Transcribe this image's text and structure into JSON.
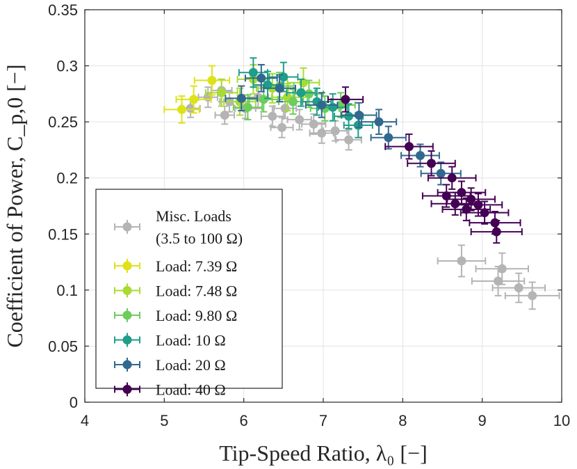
{
  "chart_data": {
    "type": "scatter",
    "title": "",
    "xlabel": "Tip-Speed Ratio, λ₀ [−]",
    "ylabel": "Coefficient of Power, C_p,0 [−]",
    "xlim": [
      4,
      10
    ],
    "ylim": [
      0,
      0.35
    ],
    "x_ticks": [
      "4",
      "5",
      "6",
      "7",
      "8",
      "9",
      "10"
    ],
    "y_ticks": [
      "0",
      "0.05",
      "0.1",
      "0.15",
      "0.2",
      "0.25",
      "0.3",
      "0.35"
    ],
    "grid": true,
    "legend_position": "bottom-left",
    "error_bars": true,
    "series": [
      {
        "name": "Misc. Loads (3.5 to 100 Ω)",
        "legend_lines": [
          "Misc. Loads",
          "(3.5 to 100 Ω)"
        ],
        "color": "#b4b4b4",
        "points": [
          {
            "x": 5.33,
            "y": 0.262,
            "xerr": 0.12,
            "yerr": 0.008
          },
          {
            "x": 5.55,
            "y": 0.272,
            "xerr": 0.12,
            "yerr": 0.009
          },
          {
            "x": 5.72,
            "y": 0.278,
            "xerr": 0.13,
            "yerr": 0.01
          },
          {
            "x": 5.82,
            "y": 0.268,
            "xerr": 0.12,
            "yerr": 0.009
          },
          {
            "x": 5.76,
            "y": 0.256,
            "xerr": 0.12,
            "yerr": 0.008
          },
          {
            "x": 6.02,
            "y": 0.262,
            "xerr": 0.13,
            "yerr": 0.009
          },
          {
            "x": 6.18,
            "y": 0.272,
            "xerr": 0.13,
            "yerr": 0.01
          },
          {
            "x": 6.36,
            "y": 0.255,
            "xerr": 0.14,
            "yerr": 0.009
          },
          {
            "x": 6.52,
            "y": 0.262,
            "xerr": 0.14,
            "yerr": 0.009
          },
          {
            "x": 6.48,
            "y": 0.245,
            "xerr": 0.14,
            "yerr": 0.009
          },
          {
            "x": 6.7,
            "y": 0.252,
            "xerr": 0.15,
            "yerr": 0.009
          },
          {
            "x": 6.88,
            "y": 0.248,
            "xerr": 0.15,
            "yerr": 0.009
          },
          {
            "x": 6.98,
            "y": 0.24,
            "xerr": 0.15,
            "yerr": 0.009
          },
          {
            "x": 7.15,
            "y": 0.242,
            "xerr": 0.15,
            "yerr": 0.009
          },
          {
            "x": 7.32,
            "y": 0.234,
            "xerr": 0.16,
            "yerr": 0.009
          },
          {
            "x": 8.74,
            "y": 0.126,
            "xerr": 0.3,
            "yerr": 0.014
          },
          {
            "x": 9.25,
            "y": 0.119,
            "xerr": 0.33,
            "yerr": 0.014
          },
          {
            "x": 9.2,
            "y": 0.108,
            "xerr": 0.33,
            "yerr": 0.013
          },
          {
            "x": 9.46,
            "y": 0.102,
            "xerr": 0.33,
            "yerr": 0.013
          },
          {
            "x": 9.63,
            "y": 0.095,
            "xerr": 0.34,
            "yerr": 0.012
          }
        ]
      },
      {
        "name": "Load: 7.39 Ω",
        "color": "#dde318",
        "points": [
          {
            "x": 5.22,
            "y": 0.261,
            "xerr": 0.22,
            "yerr": 0.012
          },
          {
            "x": 5.37,
            "y": 0.27,
            "xerr": 0.22,
            "yerr": 0.012
          },
          {
            "x": 5.6,
            "y": 0.287,
            "xerr": 0.22,
            "yerr": 0.013
          }
        ]
      },
      {
        "name": "Load: 7.48 Ω",
        "color": "#a8db34",
        "points": [
          {
            "x": 5.72,
            "y": 0.276,
            "xerr": 0.2,
            "yerr": 0.012
          },
          {
            "x": 5.95,
            "y": 0.268,
            "xerr": 0.2,
            "yerr": 0.012
          },
          {
            "x": 6.12,
            "y": 0.288,
            "xerr": 0.2,
            "yerr": 0.013
          },
          {
            "x": 6.36,
            "y": 0.28,
            "xerr": 0.2,
            "yerr": 0.013
          },
          {
            "x": 6.55,
            "y": 0.272,
            "xerr": 0.2,
            "yerr": 0.012
          },
          {
            "x": 6.75,
            "y": 0.285,
            "xerr": 0.2,
            "yerr": 0.013
          }
        ]
      },
      {
        "name": "Load: 9.80 Ω",
        "color": "#6ccd5a",
        "points": [
          {
            "x": 6.05,
            "y": 0.263,
            "xerr": 0.18,
            "yerr": 0.011
          },
          {
            "x": 6.25,
            "y": 0.27,
            "xerr": 0.18,
            "yerr": 0.011
          },
          {
            "x": 6.45,
            "y": 0.282,
            "xerr": 0.18,
            "yerr": 0.012
          },
          {
            "x": 6.62,
            "y": 0.268,
            "xerr": 0.18,
            "yerr": 0.011
          },
          {
            "x": 6.82,
            "y": 0.275,
            "xerr": 0.18,
            "yerr": 0.012
          },
          {
            "x": 7.02,
            "y": 0.262,
            "xerr": 0.18,
            "yerr": 0.011
          },
          {
            "x": 7.22,
            "y": 0.265,
            "xerr": 0.18,
            "yerr": 0.011
          }
        ]
      },
      {
        "name": "Load: 10 Ω",
        "color": "#1f9e89",
        "points": [
          {
            "x": 6.12,
            "y": 0.294,
            "xerr": 0.18,
            "yerr": 0.013
          },
          {
            "x": 6.3,
            "y": 0.283,
            "xerr": 0.18,
            "yerr": 0.012
          },
          {
            "x": 6.5,
            "y": 0.29,
            "xerr": 0.18,
            "yerr": 0.013
          },
          {
            "x": 6.72,
            "y": 0.276,
            "xerr": 0.18,
            "yerr": 0.012
          },
          {
            "x": 6.92,
            "y": 0.268,
            "xerr": 0.18,
            "yerr": 0.012
          },
          {
            "x": 7.12,
            "y": 0.263,
            "xerr": 0.18,
            "yerr": 0.012
          },
          {
            "x": 7.32,
            "y": 0.255,
            "xerr": 0.18,
            "yerr": 0.011
          },
          {
            "x": 7.44,
            "y": 0.247,
            "xerr": 0.18,
            "yerr": 0.011
          }
        ]
      },
      {
        "name": "Load: 20 Ω",
        "color": "#31688e",
        "points": [
          {
            "x": 5.97,
            "y": 0.271,
            "xerr": 0.2,
            "yerr": 0.011
          },
          {
            "x": 6.22,
            "y": 0.289,
            "xerr": 0.2,
            "yerr": 0.012
          },
          {
            "x": 6.45,
            "y": 0.28,
            "xerr": 0.2,
            "yerr": 0.012
          },
          {
            "x": 6.98,
            "y": 0.265,
            "xerr": 0.2,
            "yerr": 0.011
          },
          {
            "x": 7.45,
            "y": 0.256,
            "xerr": 0.22,
            "yerr": 0.011
          },
          {
            "x": 7.7,
            "y": 0.25,
            "xerr": 0.22,
            "yerr": 0.011
          },
          {
            "x": 7.82,
            "y": 0.236,
            "xerr": 0.22,
            "yerr": 0.01
          },
          {
            "x": 8.22,
            "y": 0.22,
            "xerr": 0.24,
            "yerr": 0.01
          },
          {
            "x": 8.48,
            "y": 0.204,
            "xerr": 0.25,
            "yerr": 0.01
          }
        ]
      },
      {
        "name": "Load: 40 Ω",
        "color": "#440154",
        "points": [
          {
            "x": 7.28,
            "y": 0.27,
            "xerr": 0.22,
            "yerr": 0.011
          },
          {
            "x": 8.08,
            "y": 0.228,
            "xerr": 0.3,
            "yerr": 0.011
          },
          {
            "x": 8.36,
            "y": 0.213,
            "xerr": 0.3,
            "yerr": 0.011
          },
          {
            "x": 8.62,
            "y": 0.2,
            "xerr": 0.3,
            "yerr": 0.01
          },
          {
            "x": 8.55,
            "y": 0.184,
            "xerr": 0.3,
            "yerr": 0.01
          },
          {
            "x": 8.66,
            "y": 0.177,
            "xerr": 0.3,
            "yerr": 0.01
          },
          {
            "x": 8.74,
            "y": 0.187,
            "xerr": 0.3,
            "yerr": 0.01
          },
          {
            "x": 8.8,
            "y": 0.172,
            "xerr": 0.3,
            "yerr": 0.01
          },
          {
            "x": 8.86,
            "y": 0.181,
            "xerr": 0.3,
            "yerr": 0.01
          },
          {
            "x": 8.95,
            "y": 0.176,
            "xerr": 0.3,
            "yerr": 0.01
          },
          {
            "x": 9.03,
            "y": 0.169,
            "xerr": 0.3,
            "yerr": 0.01
          },
          {
            "x": 9.16,
            "y": 0.16,
            "xerr": 0.32,
            "yerr": 0.01
          },
          {
            "x": 9.18,
            "y": 0.152,
            "xerr": 0.32,
            "yerr": 0.01
          }
        ]
      }
    ]
  }
}
